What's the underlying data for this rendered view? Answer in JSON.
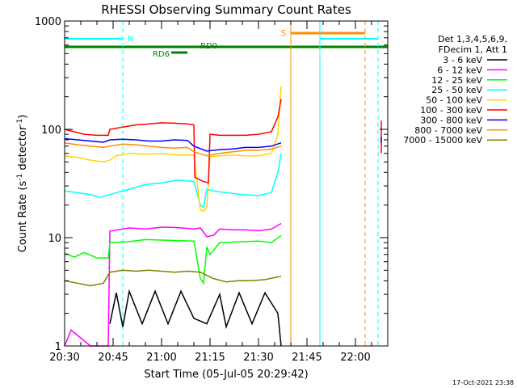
{
  "chart_data": {
    "type": "line",
    "title": "RHESSI Observing Summary Count Rates",
    "xlabel": "Start Time (05-Jul-05 20:29:42)",
    "ylabel_main": "Count Rate (s",
    "ylabel_sup1": "-1",
    "ylabel_mid": " detector",
    "ylabel_sup2": "-1",
    "ylabel_end": ")",
    "y_scale": "log",
    "ylim": [
      1,
      1000
    ],
    "xlim_minutes": [
      0,
      100
    ],
    "x_ticks": [
      {
        "label": "20:30",
        "minute": 0
      },
      {
        "label": "20:45",
        "minute": 15
      },
      {
        "label": "21:00",
        "minute": 30
      },
      {
        "label": "21:15",
        "minute": 45
      },
      {
        "label": "21:30",
        "minute": 60
      },
      {
        "label": "21:45",
        "minute": 75
      },
      {
        "label": "22:00",
        "minute": 90
      }
    ],
    "y_ticks": [
      {
        "label": "1",
        "value": 1
      },
      {
        "label": "10",
        "value": 10
      },
      {
        "label": "100",
        "value": 100
      },
      {
        "label": "1000",
        "value": 1000
      }
    ],
    "legend_header": [
      "Det 1,3,4,5,6,9,",
      "FDecim 1, Att 1"
    ],
    "legend_placement": "right",
    "series": [
      {
        "name": "3 - 6 keV",
        "color": "#000000",
        "points": [
          [
            14,
            1.6
          ],
          [
            16,
            3.1
          ],
          [
            18,
            1.5
          ],
          [
            20,
            3.2
          ],
          [
            24,
            1.6
          ],
          [
            28,
            3.2
          ],
          [
            32,
            1.6
          ],
          [
            36,
            3.2
          ],
          [
            40,
            1.8
          ],
          [
            44,
            1.6
          ],
          [
            48,
            3.0
          ],
          [
            50,
            1.5
          ],
          [
            54,
            3.1
          ],
          [
            58,
            1.6
          ],
          [
            62,
            3.1
          ],
          [
            66,
            2.0
          ],
          [
            67,
            1.0
          ]
        ]
      },
      {
        "name": "6 - 12 keV",
        "color": "#ff00ff",
        "points": [
          [
            0,
            1.0
          ],
          [
            2,
            1.4
          ],
          [
            8,
            1.0
          ],
          [
            13.5,
            1.0
          ],
          [
            14,
            11.5
          ],
          [
            20,
            12.3
          ],
          [
            25,
            12.0
          ],
          [
            30,
            12.5
          ],
          [
            35,
            12.4
          ],
          [
            40,
            12.0
          ],
          [
            42,
            12.3
          ],
          [
            44,
            10.2
          ],
          [
            46,
            10.5
          ],
          [
            48,
            12.0
          ],
          [
            52,
            11.8
          ],
          [
            56,
            11.8
          ],
          [
            60,
            11.6
          ],
          [
            64,
            12.0
          ],
          [
            67,
            13.5
          ]
        ]
      },
      {
        "name": "12 - 25 keV",
        "color": "#00ff00",
        "points": [
          [
            0,
            7.2
          ],
          [
            3,
            6.6
          ],
          [
            6,
            7.3
          ],
          [
            10,
            6.5
          ],
          [
            13.5,
            6.5
          ],
          [
            14,
            9.0
          ],
          [
            20,
            9.2
          ],
          [
            25,
            9.6
          ],
          [
            30,
            9.5
          ],
          [
            35,
            9.4
          ],
          [
            40,
            9.3
          ],
          [
            42,
            4.2
          ],
          [
            43,
            3.8
          ],
          [
            44,
            8.2
          ],
          [
            45,
            7.0
          ],
          [
            48,
            9.0
          ],
          [
            52,
            9.1
          ],
          [
            56,
            9.2
          ],
          [
            60,
            9.3
          ],
          [
            64,
            9.0
          ],
          [
            67,
            10.5
          ]
        ]
      },
      {
        "name": "25 - 50 keV",
        "color": "#00ffff",
        "points": [
          [
            0,
            27
          ],
          [
            4,
            26
          ],
          [
            8,
            25
          ],
          [
            11,
            23.5
          ],
          [
            14,
            25
          ],
          [
            16,
            26
          ],
          [
            20,
            28
          ],
          [
            25,
            31
          ],
          [
            30,
            32
          ],
          [
            35,
            34
          ],
          [
            40,
            33
          ],
          [
            42,
            20
          ],
          [
            43,
            19
          ],
          [
            44,
            28
          ],
          [
            46,
            27
          ],
          [
            50,
            26
          ],
          [
            55,
            25
          ],
          [
            60,
            24.5
          ],
          [
            64,
            26
          ],
          [
            66,
            40
          ],
          [
            67,
            60
          ]
        ]
      },
      {
        "name": "50 - 100 keV",
        "color": "#ffd700",
        "points": [
          [
            0,
            57
          ],
          [
            4,
            55
          ],
          [
            8,
            52
          ],
          [
            12,
            50
          ],
          [
            14,
            52
          ],
          [
            16,
            57
          ],
          [
            20,
            60
          ],
          [
            25,
            59
          ],
          [
            30,
            60
          ],
          [
            35,
            58
          ],
          [
            40,
            58
          ],
          [
            42,
            18
          ],
          [
            43,
            17.5
          ],
          [
            44,
            19
          ],
          [
            45,
            56
          ],
          [
            48,
            57
          ],
          [
            52,
            58
          ],
          [
            56,
            57
          ],
          [
            60,
            57
          ],
          [
            64,
            60
          ],
          [
            66,
            90
          ],
          [
            67,
            250
          ]
        ]
      },
      {
        "name": "100 - 300 keV",
        "color": "#ff0000",
        "points": [
          [
            0,
            100
          ],
          [
            3,
            95
          ],
          [
            6,
            90
          ],
          [
            10,
            88
          ],
          [
            13.5,
            88
          ],
          [
            14,
            100
          ],
          [
            18,
            105
          ],
          [
            22,
            110
          ],
          [
            26,
            112
          ],
          [
            30,
            115
          ],
          [
            34,
            114
          ],
          [
            38,
            112
          ],
          [
            40,
            110
          ],
          [
            40.3,
            36
          ],
          [
            43,
            33
          ],
          [
            44.5,
            32
          ],
          [
            45,
            90
          ],
          [
            48,
            88
          ],
          [
            52,
            88
          ],
          [
            56,
            88
          ],
          [
            60,
            90
          ],
          [
            64,
            95
          ],
          [
            66,
            130
          ],
          [
            67,
            190
          ]
        ]
      },
      {
        "name": "300 - 800 keV",
        "color": "#0000ff",
        "points": [
          [
            0,
            82
          ],
          [
            4,
            80
          ],
          [
            8,
            78
          ],
          [
            12,
            76
          ],
          [
            14,
            80
          ],
          [
            18,
            81
          ],
          [
            22,
            80
          ],
          [
            26,
            78
          ],
          [
            30,
            78
          ],
          [
            34,
            80
          ],
          [
            38,
            79
          ],
          [
            40,
            70
          ],
          [
            44,
            63
          ],
          [
            48,
            65
          ],
          [
            52,
            66
          ],
          [
            56,
            68
          ],
          [
            60,
            68
          ],
          [
            64,
            70
          ],
          [
            67,
            75
          ]
        ]
      },
      {
        "name": "800 - 7000 keV",
        "color": "#ff8c00",
        "points": [
          [
            0,
            75
          ],
          [
            4,
            72
          ],
          [
            8,
            70
          ],
          [
            12,
            68
          ],
          [
            14,
            70
          ],
          [
            18,
            73
          ],
          [
            22,
            72
          ],
          [
            26,
            70
          ],
          [
            30,
            68
          ],
          [
            34,
            67
          ],
          [
            38,
            68
          ],
          [
            40,
            62
          ],
          [
            44,
            57
          ],
          [
            48,
            60
          ],
          [
            52,
            62
          ],
          [
            56,
            64
          ],
          [
            60,
            64
          ],
          [
            64,
            66
          ],
          [
            67,
            70
          ]
        ]
      },
      {
        "name": "7000 - 15000 keV",
        "color": "#808000",
        "points": [
          [
            0,
            4.0
          ],
          [
            4,
            3.8
          ],
          [
            8,
            3.6
          ],
          [
            12,
            3.8
          ],
          [
            14,
            4.8
          ],
          [
            18,
            5.0
          ],
          [
            22,
            4.9
          ],
          [
            26,
            5.0
          ],
          [
            30,
            4.9
          ],
          [
            34,
            4.8
          ],
          [
            38,
            4.9
          ],
          [
            42,
            4.8
          ],
          [
            46,
            4.2
          ],
          [
            50,
            3.9
          ],
          [
            54,
            4.0
          ],
          [
            58,
            4.0
          ],
          [
            62,
            4.1
          ],
          [
            67,
            4.4
          ]
        ]
      }
    ],
    "annotations": [
      {
        "label": "N",
        "color": "#00ffff"
      },
      {
        "label": "S",
        "color": "#ff8c00"
      },
      {
        "label": "RD0",
        "color": "#008000"
      },
      {
        "label": "RD6",
        "color": "#008000"
      }
    ],
    "footer_date": "17-Oct-2021 23:38"
  }
}
